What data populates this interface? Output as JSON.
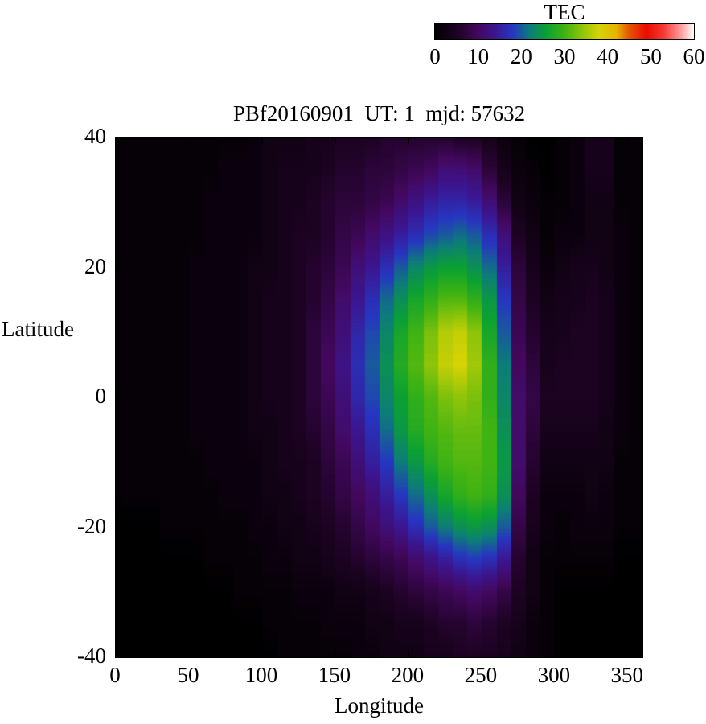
{
  "title": "PBf20160901  UT: 1  mjd: 57632",
  "colorbar": {
    "label": "TEC",
    "ticks": [
      0,
      10,
      20,
      30,
      40,
      50,
      60
    ],
    "min": 0,
    "max": 60
  },
  "axes": {
    "xlabel": "Longitude",
    "ylabel": "Latitude",
    "xticks": [
      0,
      50,
      100,
      150,
      200,
      250,
      300,
      350
    ],
    "yticks": [
      40,
      20,
      0,
      -20,
      -40
    ],
    "xlim": [
      0,
      360
    ],
    "ylim": [
      -40,
      40
    ]
  },
  "chart_data": {
    "type": "heatmap",
    "title": "PBf20160901  UT: 1  mjd: 57632",
    "xlabel": "Longitude",
    "ylabel": "Latitude",
    "colorbar_label": "TEC",
    "zlim": [
      0,
      60
    ],
    "xlim": [
      0,
      360
    ],
    "ylim": [
      -40,
      40
    ],
    "lon_step_deg": 10,
    "lat_step_deg": 5,
    "lon": [
      0,
      10,
      20,
      30,
      40,
      50,
      60,
      70,
      80,
      90,
      100,
      110,
      120,
      130,
      140,
      150,
      160,
      170,
      180,
      190,
      200,
      210,
      220,
      230,
      240,
      250,
      260,
      270,
      280,
      290,
      300,
      310,
      320,
      330,
      340,
      350
    ],
    "lat_top_to_bottom": [
      40,
      35,
      30,
      25,
      20,
      15,
      10,
      5,
      0,
      -5,
      -10,
      -15,
      -20,
      -25,
      -30,
      -35,
      -40
    ],
    "values_rows_top_to_bottom": [
      [
        1,
        1,
        1,
        1,
        1,
        1,
        1,
        1,
        1,
        2,
        3,
        3,
        3,
        4,
        4,
        5,
        5,
        5,
        6,
        6,
        6,
        6,
        6,
        5,
        5,
        4,
        2,
        1,
        0,
        0,
        1,
        2,
        4,
        4,
        1,
        1
      ],
      [
        1,
        1,
        1,
        1,
        1,
        1,
        1,
        2,
        2,
        2,
        3,
        4,
        4,
        4,
        5,
        6,
        6,
        7,
        7,
        8,
        9,
        10,
        12,
        12,
        11,
        7,
        4,
        2,
        1,
        0,
        1,
        2,
        4,
        4,
        1,
        1
      ],
      [
        1,
        1,
        1,
        1,
        1,
        1,
        2,
        2,
        2,
        2,
        3,
        4,
        4,
        5,
        6,
        7,
        7,
        8,
        9,
        11,
        13,
        15,
        16,
        16,
        15,
        12,
        7,
        3,
        2,
        1,
        1,
        2,
        3,
        3,
        1,
        1
      ],
      [
        1,
        1,
        1,
        1,
        1,
        1,
        2,
        2,
        2,
        2,
        3,
        4,
        5,
        5,
        6,
        8,
        9,
        11,
        13,
        15,
        17,
        19,
        20,
        21,
        20,
        17,
        12,
        5,
        3,
        1,
        2,
        2,
        3,
        3,
        2,
        1
      ],
      [
        1,
        1,
        1,
        1,
        1,
        2,
        2,
        2,
        2,
        3,
        3,
        4,
        5,
        6,
        7,
        9,
        12,
        14,
        17,
        20,
        23,
        25,
        26,
        26,
        24,
        21,
        15,
        7,
        4,
        2,
        3,
        4,
        4,
        3,
        2,
        1
      ],
      [
        1,
        1,
        1,
        1,
        1,
        2,
        2,
        2,
        2,
        3,
        4,
        4,
        5,
        6,
        8,
        11,
        14,
        17,
        21,
        24,
        27,
        29,
        31,
        31,
        29,
        25,
        18,
        8,
        5,
        3,
        4,
        4,
        5,
        4,
        2,
        1
      ],
      [
        1,
        1,
        1,
        1,
        1,
        2,
        2,
        2,
        2,
        3,
        4,
        4,
        5,
        7,
        9,
        12,
        16,
        19,
        23,
        27,
        30,
        33,
        36,
        37,
        34,
        27,
        20,
        9,
        6,
        4,
        4,
        5,
        5,
        4,
        2,
        1
      ],
      [
        1,
        1,
        1,
        1,
        1,
        2,
        2,
        2,
        2,
        3,
        4,
        4,
        5,
        7,
        10,
        13,
        17,
        20,
        24,
        28,
        31,
        34,
        37,
        38,
        35,
        29,
        22,
        10,
        7,
        4,
        5,
        5,
        5,
        4,
        2,
        1
      ],
      [
        1,
        1,
        1,
        1,
        1,
        2,
        2,
        2,
        2,
        3,
        4,
        4,
        5,
        7,
        9,
        12,
        16,
        19,
        23,
        26,
        29,
        31,
        33,
        34,
        33,
        29,
        23,
        11,
        8,
        5,
        5,
        5,
        5,
        4,
        2,
        1
      ],
      [
        1,
        1,
        1,
        1,
        1,
        2,
        2,
        2,
        2,
        3,
        3,
        4,
        5,
        6,
        8,
        11,
        14,
        17,
        21,
        25,
        28,
        30,
        31,
        32,
        32,
        30,
        24,
        11,
        7,
        4,
        4,
        4,
        4,
        3,
        2,
        1
      ],
      [
        1,
        1,
        1,
        1,
        1,
        1,
        2,
        2,
        2,
        2,
        3,
        4,
        4,
        5,
        7,
        9,
        12,
        15,
        18,
        22,
        25,
        28,
        30,
        31,
        31,
        30,
        25,
        11,
        6,
        3,
        3,
        3,
        3,
        3,
        1,
        1
      ],
      [
        1,
        1,
        1,
        1,
        1,
        1,
        1,
        2,
        2,
        2,
        3,
        3,
        4,
        5,
        6,
        8,
        10,
        12,
        15,
        18,
        21,
        24,
        27,
        29,
        30,
        29,
        24,
        10,
        5,
        2,
        2,
        2,
        3,
        2,
        1,
        1
      ],
      [
        0,
        0,
        0,
        1,
        1,
        1,
        1,
        1,
        1,
        2,
        2,
        3,
        3,
        4,
        5,
        6,
        8,
        10,
        12,
        14,
        17,
        20,
        22,
        24,
        25,
        24,
        20,
        8,
        4,
        2,
        1,
        2,
        2,
        2,
        1,
        1
      ],
      [
        0,
        0,
        0,
        0,
        0,
        0,
        1,
        1,
        1,
        1,
        2,
        2,
        3,
        3,
        4,
        5,
        6,
        7,
        8,
        9,
        11,
        13,
        15,
        17,
        18,
        17,
        14,
        6,
        3,
        1,
        1,
        1,
        1,
        1,
        0,
        0
      ],
      [
        0,
        0,
        0,
        0,
        0,
        0,
        0,
        0,
        1,
        1,
        1,
        1,
        2,
        2,
        2,
        3,
        3,
        4,
        5,
        6,
        7,
        8,
        9,
        10,
        11,
        10,
        8,
        5,
        3,
        1,
        0,
        0,
        0,
        0,
        0,
        0
      ],
      [
        0,
        0,
        0,
        0,
        0,
        0,
        0,
        0,
        0,
        0,
        1,
        1,
        1,
        1,
        2,
        2,
        2,
        3,
        3,
        4,
        4,
        5,
        6,
        6,
        7,
        6,
        5,
        4,
        2,
        1,
        0,
        0,
        0,
        0,
        0,
        0
      ],
      [
        0,
        0,
        0,
        0,
        0,
        0,
        0,
        0,
        0,
        0,
        0,
        1,
        1,
        1,
        1,
        1,
        2,
        2,
        3,
        3,
        3,
        4,
        4,
        5,
        5,
        5,
        4,
        3,
        2,
        1,
        0,
        0,
        0,
        0,
        0,
        0
      ]
    ],
    "palette_stops": [
      [
        0,
        "#000000"
      ],
      [
        5,
        "#1c0322"
      ],
      [
        10,
        "#43085e"
      ],
      [
        14,
        "#3b1690"
      ],
      [
        18,
        "#2636c0"
      ],
      [
        22,
        "#0c7d78"
      ],
      [
        26,
        "#0ba132"
      ],
      [
        30,
        "#3fb312"
      ],
      [
        34,
        "#8ec40a"
      ],
      [
        38,
        "#d6d304"
      ],
      [
        42,
        "#e3b400"
      ],
      [
        45,
        "#e55400"
      ],
      [
        49,
        "#ea0c00"
      ],
      [
        53,
        "#f63a33"
      ],
      [
        57,
        "#ff9d9d"
      ],
      [
        60,
        "#ffffff"
      ]
    ]
  }
}
